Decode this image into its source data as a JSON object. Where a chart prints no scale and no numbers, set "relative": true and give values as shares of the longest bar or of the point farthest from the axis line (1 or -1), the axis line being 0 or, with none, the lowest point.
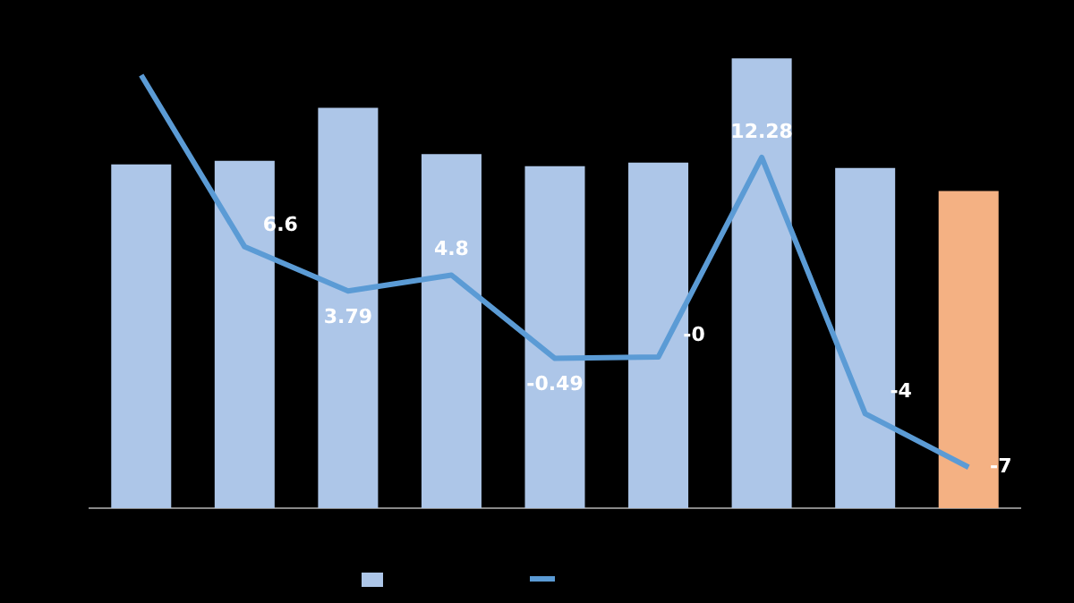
{
  "chart_data": [
    {
      "type": "bar",
      "relative": true,
      "categories": [
        null,
        null,
        null,
        null,
        null,
        null,
        null,
        null,
        null
      ],
      "series": [
        {
          "colors": [
            "#adc6e8",
            "#adc6e8",
            "#adc6e8",
            "#adc6e8",
            "#adc6e8",
            "#adc6e8",
            "#adc6e8",
            "#adc6e8",
            "#f4b183"
          ],
          "values": [
            0.764,
            0.772,
            0.89,
            0.787,
            0.76,
            0.768,
            1,
            0.756,
            0.705
          ]
        }
      ]
    },
    {
      "type": "line",
      "categories": [
        null,
        null,
        null,
        null,
        null,
        null,
        null,
        null,
        null
      ],
      "series": [
        {
          "color": "#5b9bd5",
          "values": [
            17.5,
            6.6,
            3.79,
            4.8,
            -0.49,
            -0.4,
            12.28,
            -4,
            -7.4
          ],
          "value_labels": [
            null,
            "6.6",
            "3.79",
            "4.8",
            "-0.49",
            "-0",
            "12.28",
            "-4",
            "-7"
          ]
        }
      ]
    }
  ]
}
